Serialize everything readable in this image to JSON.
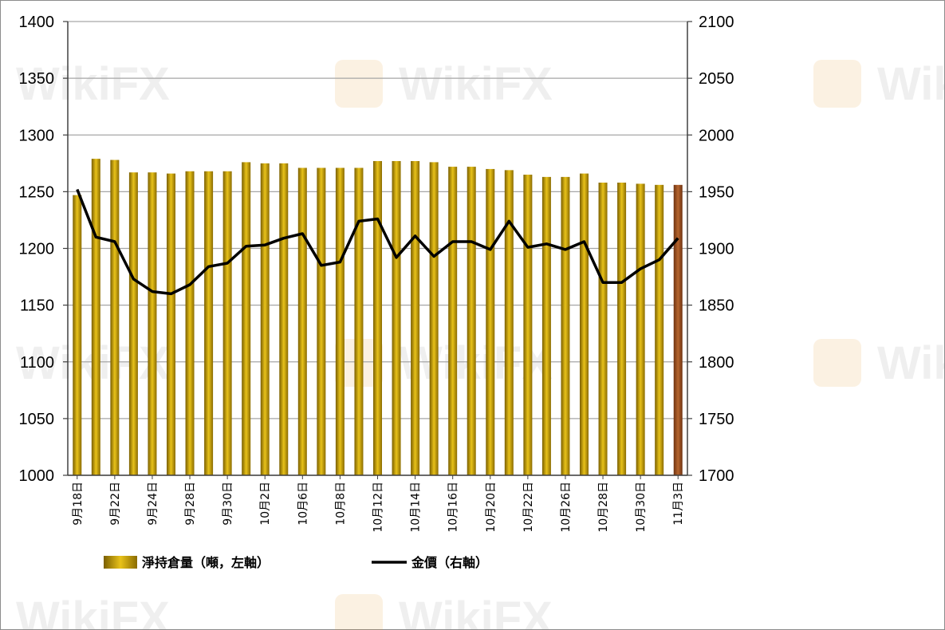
{
  "chart_data": {
    "type": "bar+line",
    "title": "",
    "categories": [
      "9月18日",
      "9月21日",
      "9月22日",
      "9月23日",
      "9月24日",
      "9月25日",
      "9月28日",
      "9月29日",
      "9月30日",
      "10月1日",
      "10月2日",
      "10月5日",
      "10月6日",
      "10月7日",
      "10月8日",
      "10月9日",
      "10月12日",
      "10月13日",
      "10月14日",
      "10月15日",
      "10月16日",
      "10月19日",
      "10月20日",
      "10月21日",
      "10月22日",
      "10月23日",
      "10月26日",
      "10月27日",
      "10月28日",
      "10月29日",
      "10月30日",
      "11月2日",
      "11月3日"
    ],
    "x_tick_labels": [
      "9月18日",
      "",
      "9月22日",
      "",
      "9月24日",
      "",
      "9月28日",
      "",
      "9月30日",
      "",
      "10月2日",
      "",
      "10月6日",
      "",
      "10月8日",
      "",
      "10月12日",
      "",
      "10月14日",
      "",
      "10月16日",
      "",
      "10月20日",
      "",
      "10月22日",
      "",
      "10月26日",
      "",
      "10月28日",
      "",
      "10月30日",
      "",
      "11月3日"
    ],
    "series": [
      {
        "name": "淨持倉量（噸，左軸）",
        "type": "bar",
        "axis": "left",
        "color": "#c9a208",
        "highlight_color": "#a0522d",
        "highlight_index": 32,
        "values": [
          1247,
          1279,
          1278,
          1267,
          1267,
          1266,
          1268,
          1268,
          1268,
          1276,
          1275,
          1275,
          1271,
          1271,
          1271,
          1271,
          1277,
          1277,
          1277,
          1276,
          1272,
          1272,
          1270,
          1269,
          1265,
          1263,
          1263,
          1266,
          1258,
          1258,
          1257,
          1256,
          1256
        ]
      },
      {
        "name": "金價（右軸）",
        "type": "line",
        "axis": "right",
        "color": "#000000",
        "values": [
          1952,
          1910,
          1906,
          1873,
          1862,
          1860,
          1868,
          1884,
          1887,
          1902,
          1903,
          1909,
          1913,
          1885,
          1888,
          1924,
          1926,
          1892,
          1911,
          1893,
          1906,
          1906,
          1899,
          1924,
          1901,
          1904,
          1899,
          1906,
          1870,
          1870,
          1882,
          1890,
          1909
        ]
      }
    ],
    "y_left": {
      "min": 1000,
      "max": 1400,
      "step": 50,
      "ticks": [
        "1000",
        "1050",
        "1100",
        "1150",
        "1200",
        "1250",
        "1300",
        "1350",
        "1400"
      ]
    },
    "y_right": {
      "min": 1700,
      "max": 2100,
      "step": 50,
      "ticks": [
        "1700",
        "1750",
        "1800",
        "1850",
        "1900",
        "1950",
        "2000",
        "2050",
        "2100"
      ]
    },
    "grid": true,
    "legend_position": "bottom"
  },
  "legend": {
    "bar_label": "淨持倉量（噸，左軸）",
    "line_label": "金價（右軸）"
  },
  "watermark": "WikiFX"
}
